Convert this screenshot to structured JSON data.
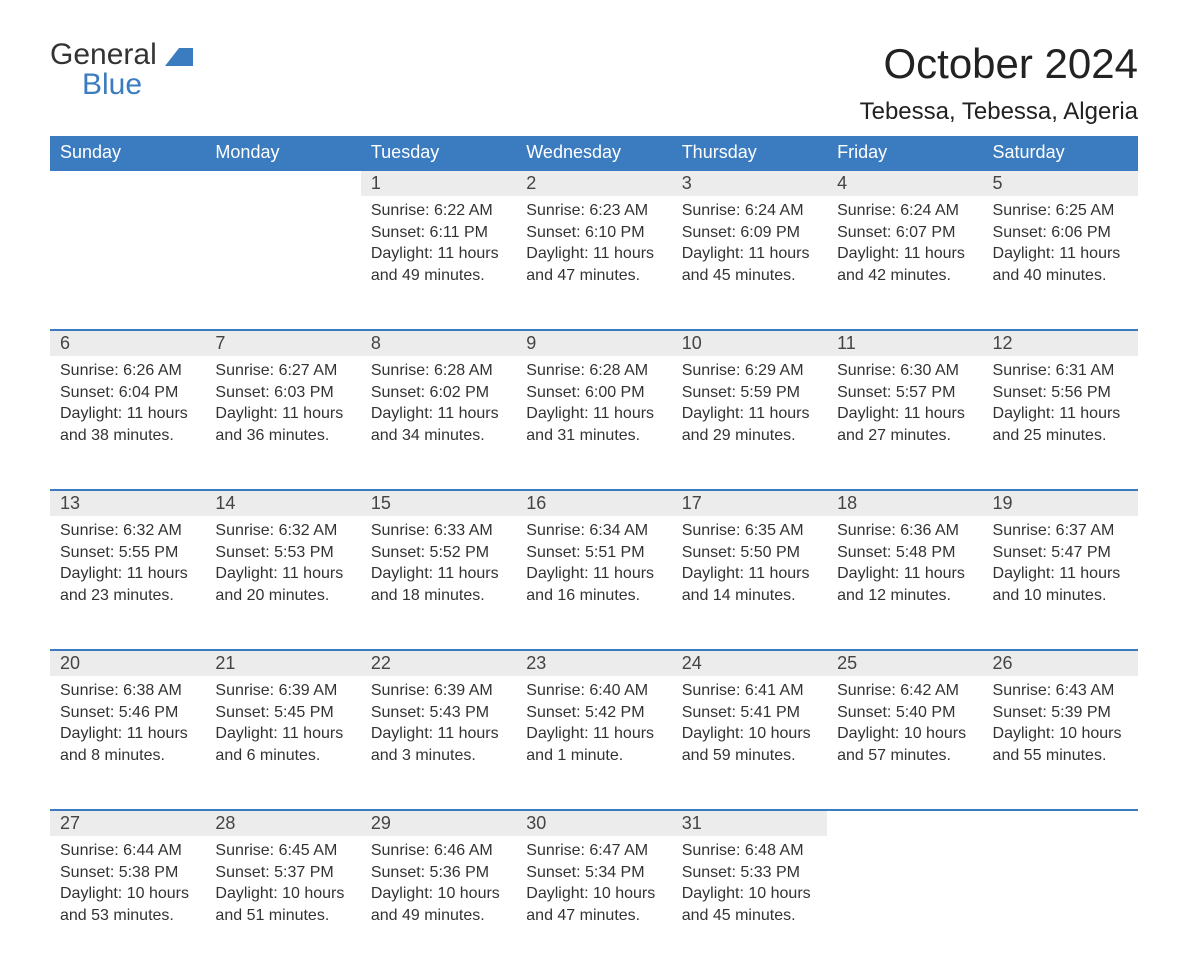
{
  "logo": {
    "text1": "General",
    "text2": "Blue"
  },
  "title": "October 2024",
  "location": "Tebessa, Tebessa, Algeria",
  "colors": {
    "header_bg": "#3b7bbf",
    "header_text": "#ffffff",
    "daynum_bg": "#ececec",
    "row_border": "#3b7bbf",
    "body_text": "#333333",
    "page_bg": "#ffffff"
  },
  "day_headers": [
    "Sunday",
    "Monday",
    "Tuesday",
    "Wednesday",
    "Thursday",
    "Friday",
    "Saturday"
  ],
  "weeks": [
    [
      null,
      null,
      {
        "n": "1",
        "sunrise": "6:22 AM",
        "sunset": "6:11 PM",
        "daylight": "11 hours and 49 minutes."
      },
      {
        "n": "2",
        "sunrise": "6:23 AM",
        "sunset": "6:10 PM",
        "daylight": "11 hours and 47 minutes."
      },
      {
        "n": "3",
        "sunrise": "6:24 AM",
        "sunset": "6:09 PM",
        "daylight": "11 hours and 45 minutes."
      },
      {
        "n": "4",
        "sunrise": "6:24 AM",
        "sunset": "6:07 PM",
        "daylight": "11 hours and 42 minutes."
      },
      {
        "n": "5",
        "sunrise": "6:25 AM",
        "sunset": "6:06 PM",
        "daylight": "11 hours and 40 minutes."
      }
    ],
    [
      {
        "n": "6",
        "sunrise": "6:26 AM",
        "sunset": "6:04 PM",
        "daylight": "11 hours and 38 minutes."
      },
      {
        "n": "7",
        "sunrise": "6:27 AM",
        "sunset": "6:03 PM",
        "daylight": "11 hours and 36 minutes."
      },
      {
        "n": "8",
        "sunrise": "6:28 AM",
        "sunset": "6:02 PM",
        "daylight": "11 hours and 34 minutes."
      },
      {
        "n": "9",
        "sunrise": "6:28 AM",
        "sunset": "6:00 PM",
        "daylight": "11 hours and 31 minutes."
      },
      {
        "n": "10",
        "sunrise": "6:29 AM",
        "sunset": "5:59 PM",
        "daylight": "11 hours and 29 minutes."
      },
      {
        "n": "11",
        "sunrise": "6:30 AM",
        "sunset": "5:57 PM",
        "daylight": "11 hours and 27 minutes."
      },
      {
        "n": "12",
        "sunrise": "6:31 AM",
        "sunset": "5:56 PM",
        "daylight": "11 hours and 25 minutes."
      }
    ],
    [
      {
        "n": "13",
        "sunrise": "6:32 AM",
        "sunset": "5:55 PM",
        "daylight": "11 hours and 23 minutes."
      },
      {
        "n": "14",
        "sunrise": "6:32 AM",
        "sunset": "5:53 PM",
        "daylight": "11 hours and 20 minutes."
      },
      {
        "n": "15",
        "sunrise": "6:33 AM",
        "sunset": "5:52 PM",
        "daylight": "11 hours and 18 minutes."
      },
      {
        "n": "16",
        "sunrise": "6:34 AM",
        "sunset": "5:51 PM",
        "daylight": "11 hours and 16 minutes."
      },
      {
        "n": "17",
        "sunrise": "6:35 AM",
        "sunset": "5:50 PM",
        "daylight": "11 hours and 14 minutes."
      },
      {
        "n": "18",
        "sunrise": "6:36 AM",
        "sunset": "5:48 PM",
        "daylight": "11 hours and 12 minutes."
      },
      {
        "n": "19",
        "sunrise": "6:37 AM",
        "sunset": "5:47 PM",
        "daylight": "11 hours and 10 minutes."
      }
    ],
    [
      {
        "n": "20",
        "sunrise": "6:38 AM",
        "sunset": "5:46 PM",
        "daylight": "11 hours and 8 minutes."
      },
      {
        "n": "21",
        "sunrise": "6:39 AM",
        "sunset": "5:45 PM",
        "daylight": "11 hours and 6 minutes."
      },
      {
        "n": "22",
        "sunrise": "6:39 AM",
        "sunset": "5:43 PM",
        "daylight": "11 hours and 3 minutes."
      },
      {
        "n": "23",
        "sunrise": "6:40 AM",
        "sunset": "5:42 PM",
        "daylight": "11 hours and 1 minute."
      },
      {
        "n": "24",
        "sunrise": "6:41 AM",
        "sunset": "5:41 PM",
        "daylight": "10 hours and 59 minutes."
      },
      {
        "n": "25",
        "sunrise": "6:42 AM",
        "sunset": "5:40 PM",
        "daylight": "10 hours and 57 minutes."
      },
      {
        "n": "26",
        "sunrise": "6:43 AM",
        "sunset": "5:39 PM",
        "daylight": "10 hours and 55 minutes."
      }
    ],
    [
      {
        "n": "27",
        "sunrise": "6:44 AM",
        "sunset": "5:38 PM",
        "daylight": "10 hours and 53 minutes."
      },
      {
        "n": "28",
        "sunrise": "6:45 AM",
        "sunset": "5:37 PM",
        "daylight": "10 hours and 51 minutes."
      },
      {
        "n": "29",
        "sunrise": "6:46 AM",
        "sunset": "5:36 PM",
        "daylight": "10 hours and 49 minutes."
      },
      {
        "n": "30",
        "sunrise": "6:47 AM",
        "sunset": "5:34 PM",
        "daylight": "10 hours and 47 minutes."
      },
      {
        "n": "31",
        "sunrise": "6:48 AM",
        "sunset": "5:33 PM",
        "daylight": "10 hours and 45 minutes."
      },
      null,
      null
    ]
  ],
  "labels": {
    "sunrise": "Sunrise: ",
    "sunset": "Sunset: ",
    "daylight": "Daylight: "
  }
}
